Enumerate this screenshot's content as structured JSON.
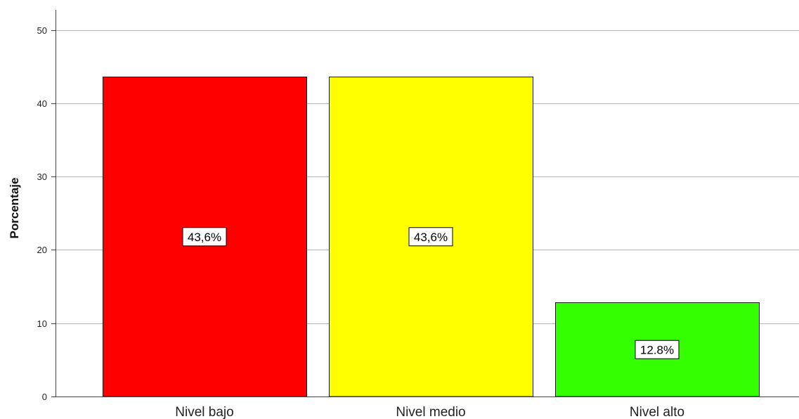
{
  "chart_data": {
    "type": "bar",
    "title": "",
    "xlabel": "",
    "ylabel": "Porcentaje",
    "ylim": [
      0,
      52
    ],
    "yticks": [
      0,
      10,
      20,
      30,
      40,
      50
    ],
    "grid": "horizontal",
    "categories": [
      "Nivel bajo",
      "Nivel medio",
      "Nivel alto"
    ],
    "values": [
      43.6,
      43.6,
      12.8
    ],
    "data_labels": [
      "43,6%",
      "43,6%",
      "12.8%"
    ],
    "colors": [
      "#ff0000",
      "#ffff00",
      "#33ff00"
    ]
  }
}
